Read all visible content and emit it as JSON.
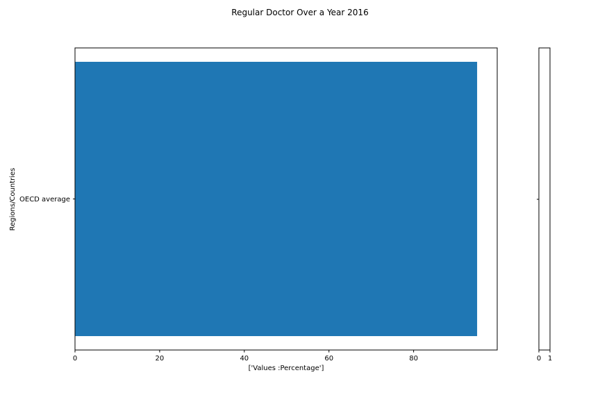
{
  "chart_data": {
    "type": "bar",
    "orientation": "horizontal",
    "title": "Regular Doctor Over a Year 2016",
    "xlabel": "['Values :Percentage']",
    "ylabel": "Regions/Countries",
    "categories": [
      "OECD average"
    ],
    "values": [
      95
    ],
    "xlim": [
      0,
      99.75
    ],
    "xticks": [
      0,
      20,
      40,
      60,
      80
    ],
    "grid": false,
    "bar_color": "#1f77b4",
    "secondary_axis": {
      "xticks": [
        "0",
        "1"
      ]
    }
  }
}
